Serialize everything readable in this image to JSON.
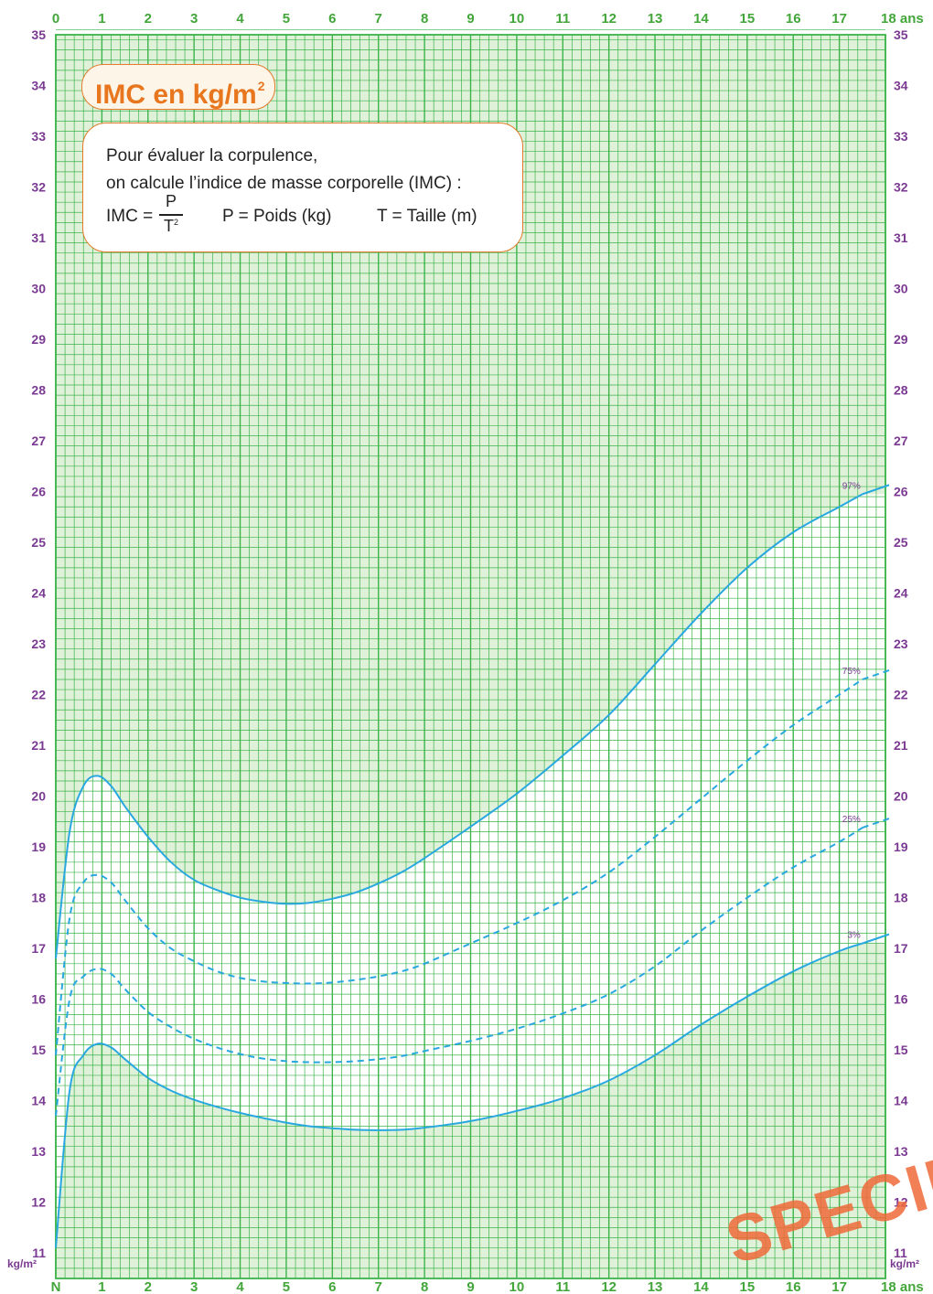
{
  "title_main": "IMC en kg/m",
  "title_sup": "2",
  "info": {
    "line1": "Pour évaluer la corpulence,",
    "line2": "on calcule l’indice de masse corporelle (IMC) :",
    "imc_label": "IMC =",
    "numerator": "P",
    "denominator": "T",
    "denominator_exp": "2",
    "poids": "P = Poids (kg)",
    "taille": "T = Taille (m)"
  },
  "watermark": "SPECIMEN",
  "chart_data": {
    "type": "line",
    "title": "IMC en kg/m²",
    "x_ticks_top": [
      "0",
      "1",
      "2",
      "3",
      "4",
      "5",
      "6",
      "7",
      "8",
      "9",
      "10",
      "11",
      "12",
      "13",
      "14",
      "15",
      "16",
      "17",
      "18 ans"
    ],
    "x_ticks_bottom": [
      "N",
      "1",
      "2",
      "3",
      "4",
      "5",
      "6",
      "7",
      "8",
      "9",
      "10",
      "11",
      "12",
      "13",
      "14",
      "15",
      "16",
      "17",
      "18 ans"
    ],
    "y_unit_label": "kg/m²",
    "xlim": [
      0,
      18
    ],
    "ylim": [
      10.5,
      35
    ],
    "y_ticks": [
      11,
      12,
      13,
      14,
      15,
      16,
      17,
      18,
      19,
      20,
      21,
      22,
      23,
      24,
      25,
      26,
      27,
      28,
      29,
      30,
      31,
      32,
      33,
      34,
      35
    ],
    "grid": true,
    "colors": {
      "grid": "#3cb44b",
      "curve": "#29a8e0",
      "tick_x": "#43a63a",
      "tick_y": "#7b3a92",
      "fill": "#dff1d8",
      "percent_label": "#7b3a92"
    },
    "series": [
      {
        "name": "97%",
        "style": "solid",
        "x": [
          0,
          0.3,
          0.6,
          0.9,
          1.2,
          1.5,
          2,
          2.5,
          3,
          3.5,
          4,
          4.5,
          5,
          5.5,
          6,
          6.5,
          7,
          7.5,
          8,
          9,
          10,
          11,
          12,
          13,
          14,
          15,
          16,
          17,
          17.5
        ],
        "y": [
          16.8,
          19.3,
          20.2,
          20.4,
          20.2,
          19.8,
          19.2,
          18.7,
          18.35,
          18.15,
          18.0,
          17.92,
          17.88,
          17.9,
          17.98,
          18.1,
          18.28,
          18.5,
          18.78,
          19.4,
          20.05,
          20.8,
          21.6,
          22.6,
          23.6,
          24.5,
          25.2,
          25.7,
          25.95
        ]
      },
      {
        "name": "75%",
        "style": "dashed",
        "x": [
          0,
          0.3,
          0.6,
          0.9,
          1.2,
          1.5,
          2,
          2.5,
          3,
          3.5,
          4,
          4.5,
          5,
          5.5,
          6,
          6.5,
          7,
          7.5,
          8,
          9,
          10,
          11,
          12,
          13,
          14,
          15,
          16,
          17,
          17.5
        ],
        "y": [
          14.9,
          17.6,
          18.3,
          18.45,
          18.3,
          17.95,
          17.4,
          17.0,
          16.75,
          16.55,
          16.42,
          16.35,
          16.32,
          16.31,
          16.33,
          16.38,
          16.45,
          16.55,
          16.7,
          17.1,
          17.5,
          17.95,
          18.5,
          19.2,
          19.95,
          20.7,
          21.4,
          22.0,
          22.3
        ]
      },
      {
        "name": "25%",
        "style": "dashed",
        "x": [
          0,
          0.3,
          0.6,
          0.9,
          1.2,
          1.5,
          2,
          2.5,
          3,
          3.5,
          4,
          4.5,
          5,
          5.5,
          6,
          6.5,
          7,
          7.5,
          8,
          9,
          10,
          11,
          12,
          13,
          14,
          15,
          16,
          17,
          17.5
        ],
        "y": [
          13.7,
          16.0,
          16.45,
          16.6,
          16.5,
          16.2,
          15.75,
          15.45,
          15.22,
          15.05,
          14.92,
          14.83,
          14.78,
          14.76,
          14.76,
          14.78,
          14.82,
          14.88,
          14.98,
          15.18,
          15.42,
          15.72,
          16.1,
          16.65,
          17.35,
          18.0,
          18.6,
          19.1,
          19.38
        ]
      },
      {
        "name": "3%",
        "style": "solid",
        "x": [
          0,
          0.3,
          0.6,
          0.9,
          1.2,
          1.5,
          2,
          2.5,
          3,
          3.5,
          4,
          4.5,
          5,
          5.5,
          6,
          6.5,
          7,
          7.5,
          8,
          9,
          10,
          11,
          12,
          13,
          14,
          15,
          16,
          17,
          17.5
        ],
        "y": [
          11.1,
          14.2,
          14.9,
          15.12,
          15.05,
          14.82,
          14.45,
          14.2,
          14.02,
          13.88,
          13.76,
          13.66,
          13.57,
          13.5,
          13.46,
          13.43,
          13.42,
          13.43,
          13.47,
          13.6,
          13.8,
          14.05,
          14.4,
          14.9,
          15.5,
          16.05,
          16.55,
          16.95,
          17.1
        ]
      }
    ]
  }
}
